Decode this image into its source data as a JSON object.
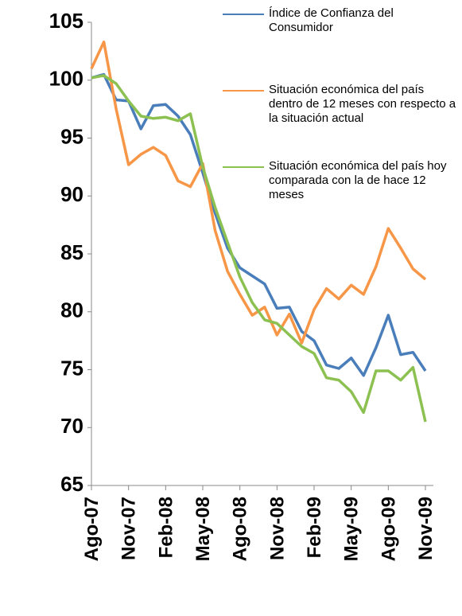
{
  "chart_data": {
    "type": "line",
    "categories": [
      "Ago-07",
      null,
      null,
      "Nov-07",
      null,
      null,
      "Feb-08",
      null,
      null,
      "May-08",
      null,
      null,
      "Ago-08",
      null,
      null,
      "Nov-08",
      null,
      null,
      "Feb-09",
      null,
      null,
      "May-09",
      null,
      null,
      "Ago-09",
      null,
      null,
      "Nov-09"
    ],
    "series": [
      {
        "name": "Índice de Confianza del Consumidor",
        "color": "#4a7ebb",
        "values": [
          100.2,
          100.5,
          98.3,
          98.2,
          95.8,
          97.8,
          97.9,
          96.9,
          95.3,
          92.0,
          88.5,
          85.5,
          83.8,
          83.1,
          82.4,
          80.3,
          80.4,
          78.3,
          77.5,
          75.4,
          75.1,
          76.0,
          74.5,
          76.9,
          79.7,
          76.3,
          76.5,
          74.9
        ]
      },
      {
        "name": "Situación económica del país dentro de 12 meses con respecto a la situación actual",
        "color": "#f79646",
        "values": [
          101,
          103.3,
          97.5,
          92.7,
          93.6,
          94.2,
          93.5,
          91.3,
          90.8,
          92.8,
          87.0,
          83.5,
          81.5,
          79.7,
          80.4,
          78.0,
          79.8,
          77.3,
          80.2,
          82.0,
          81.1,
          82.3,
          81.5,
          83.9,
          87.2,
          85.5,
          83.7,
          82.8
        ]
      },
      {
        "name": "Situación económica del país hoy comparada con la de hace 12 meses",
        "color": "#8cc152",
        "values": [
          100.2,
          100.4,
          99.7,
          98.2,
          96.9,
          96.7,
          96.8,
          96.5,
          97.1,
          92.5,
          89.0,
          86.0,
          83.0,
          80.8,
          79.3,
          79.0,
          78.0,
          77.0,
          76.4,
          74.3,
          74.1,
          73.1,
          71.3,
          74.9,
          74.9,
          74.1,
          75.2,
          70.5
        ]
      }
    ],
    "ylim": [
      65,
      105
    ],
    "yticks": [
      65,
      70,
      75,
      80,
      85,
      90,
      95,
      100,
      105
    ]
  }
}
